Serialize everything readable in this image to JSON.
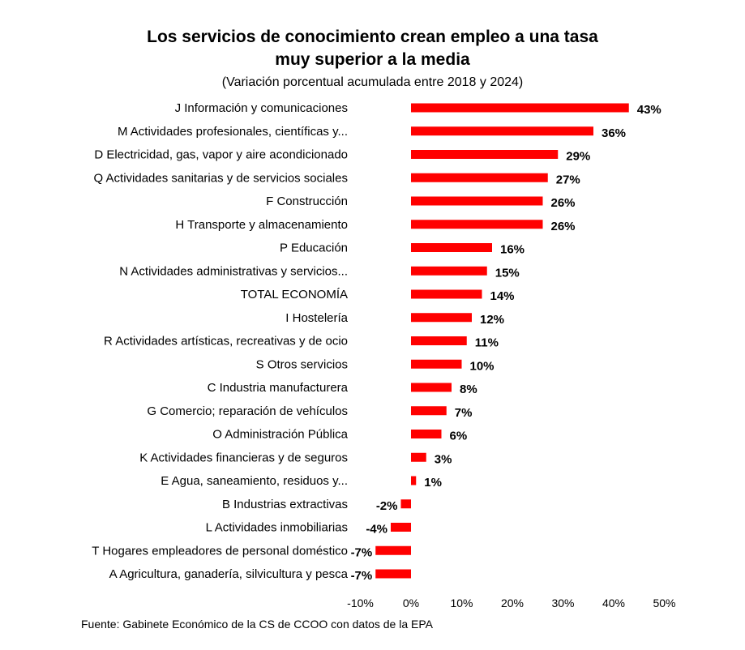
{
  "chart_data": {
    "type": "bar",
    "orientation": "horizontal",
    "title_line1": "Los servicios de conocimiento crean empleo a una tasa",
    "title_line2": "muy superior a la media",
    "subtitle": "(Variación porcentual acumulada entre 2018 y 2024)",
    "source": "Fuente: Gabinete Económico de la CS de CCOO con datos de la EPA",
    "bar_color": "#ff0000",
    "categories": [
      "J Información y comunicaciones",
      "M Actividades profesionales, científicas y...",
      "D Electricidad, gas, vapor y aire acondicionado",
      "Q Actividades sanitarias y de servicios sociales",
      "F Construcción",
      "H Transporte y almacenamiento",
      "P Educación",
      "N Actividades administrativas y servicios...",
      "TOTAL ECONOMÍA",
      "I Hostelería",
      "R Actividades artísticas, recreativas y de ocio",
      "S Otros servicios",
      "C Industria manufacturera",
      "G Comercio; reparación de vehículos",
      "O Administración Pública",
      "K Actividades financieras y de seguros",
      "E Agua, saneamiento, residuos y...",
      "B Industrias extractivas",
      "L Actividades inmobiliarias",
      "T Hogares empleadores de personal doméstico",
      "A Agricultura, ganadería, silvicultura y pesca"
    ],
    "values": [
      43,
      36,
      29,
      27,
      26,
      26,
      16,
      15,
      14,
      12,
      11,
      10,
      8,
      7,
      6,
      3,
      1,
      -2,
      -4,
      -7,
      -7
    ],
    "value_labels": [
      "43%",
      "36%",
      "29%",
      "27%",
      "26%",
      "26%",
      "16%",
      "15%",
      "14%",
      "12%",
      "11%",
      "10%",
      "8%",
      "7%",
      "6%",
      "3%",
      "1%",
      "-2%",
      "-4%",
      "-7%",
      "-7%"
    ],
    "xlim": [
      -10,
      50
    ],
    "x_ticks": [
      -10,
      0,
      10,
      20,
      30,
      40,
      50
    ],
    "x_tick_labels": [
      "-10%",
      "0%",
      "10%",
      "20%",
      "30%",
      "40%",
      "50%"
    ],
    "grid": false,
    "legend": "none"
  }
}
